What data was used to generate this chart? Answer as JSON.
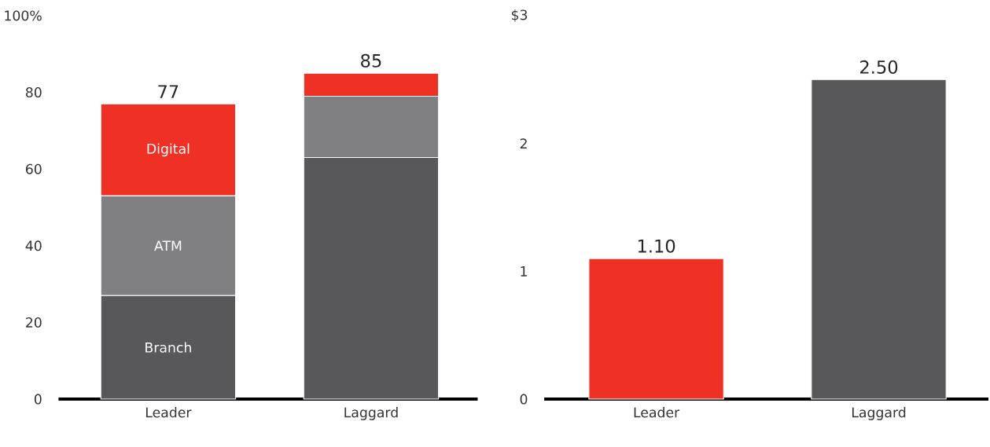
{
  "chart_data": [
    {
      "type": "bar",
      "stacked": true,
      "categories": [
        "Leader",
        "Laggard"
      ],
      "series": [
        {
          "name": "Branch",
          "color": "#58585a",
          "values": [
            27,
            63
          ]
        },
        {
          "name": "ATM",
          "color": "#808083",
          "values": [
            26,
            16
          ]
        },
        {
          "name": "Digital",
          "color": "#ee3124",
          "values": [
            24,
            6
          ]
        }
      ],
      "totals": [
        "77",
        "85"
      ],
      "ylim": [
        0,
        100
      ],
      "yticks": [
        0,
        20,
        40,
        60,
        80,
        {
          "value": 100,
          "label": "100%"
        }
      ],
      "grid": false
    },
    {
      "type": "bar",
      "categories": [
        "Leader",
        "Laggard"
      ],
      "values": [
        1.1,
        2.5
      ],
      "colors": [
        "#ee3124",
        "#58585a"
      ],
      "value_labels": [
        "1.10",
        "2.50"
      ],
      "ylim": [
        0,
        3
      ],
      "yticks": [
        0,
        1,
        2,
        {
          "value": 3,
          "label": "$3"
        }
      ],
      "grid": false
    }
  ]
}
